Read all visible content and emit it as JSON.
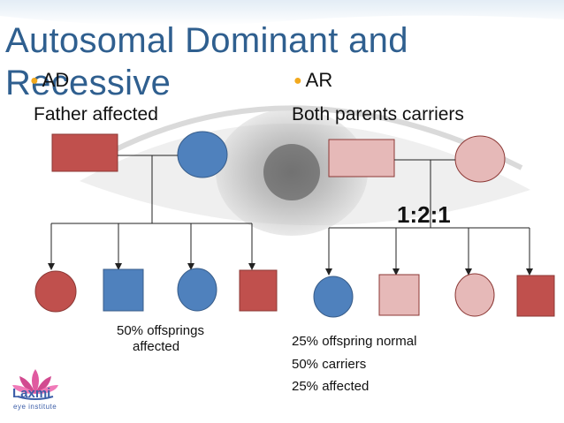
{
  "title": "Autosomal Dominant and Recessive",
  "left": {
    "bullet": "AD",
    "subtitle": "Father affected",
    "note_line1": "50% offsprings",
    "note_line2": "affected"
  },
  "right": {
    "bullet": "AR",
    "subtitle": "Both parents carriers",
    "ratio": "1:2:1",
    "stats": [
      "25% offspring normal",
      "50% carriers",
      "25% affected"
    ]
  },
  "logo": {
    "name": "Laxmi",
    "tagline": "eye institute"
  },
  "colors": {
    "affected": "#c0504d",
    "normal": "#4f81bd",
    "carrier": "#e6b9b8",
    "title": "#2f5f8f",
    "bullet": "#f2a91e"
  }
}
